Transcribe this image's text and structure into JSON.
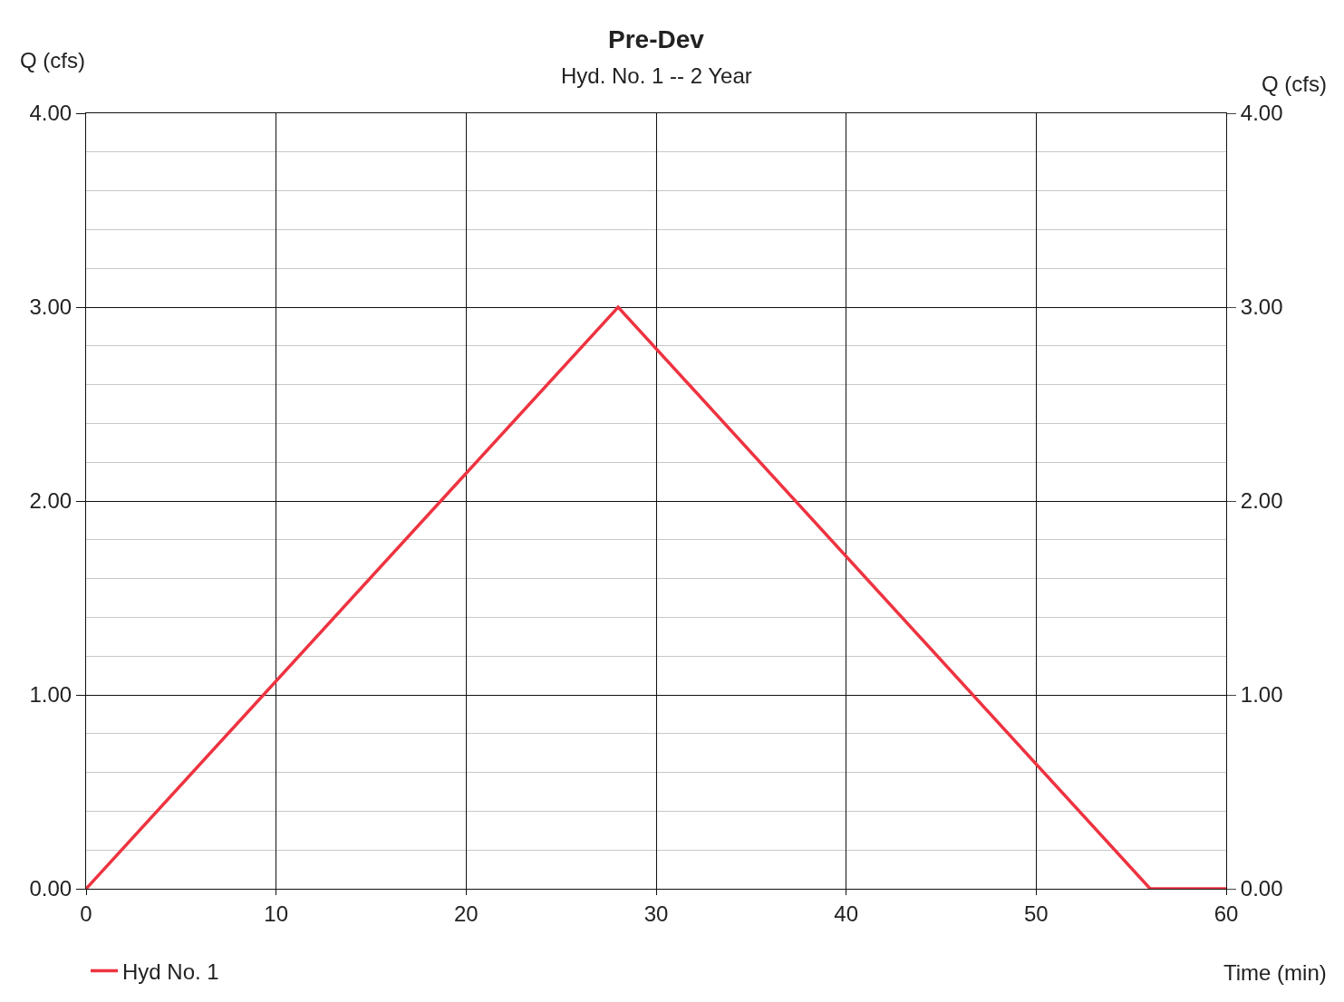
{
  "chart_data": {
    "type": "line",
    "title": "Pre-Dev",
    "subtitle": "Hyd. No. 1 -- 2 Year",
    "xlabel": "Time (min)",
    "ylabel": "Q (cfs)",
    "y2label": "Q (cfs)",
    "x": [
      0,
      28,
      56,
      60
    ],
    "series": [
      {
        "name": "Hyd No. 1",
        "color": "#ee3340",
        "values": [
          0,
          3.0,
          0,
          0
        ]
      }
    ],
    "xlim": [
      0,
      60
    ],
    "xticks": [
      0,
      10,
      20,
      30,
      40,
      50,
      60
    ],
    "ylim": [
      0,
      4
    ],
    "yticks": [
      {
        "value": 0,
        "label": "0.00"
      },
      {
        "value": 0.2,
        "label": null
      },
      {
        "value": 0.4,
        "label": null
      },
      {
        "value": 0.6,
        "label": null
      },
      {
        "value": 0.8,
        "label": null
      },
      {
        "value": 1,
        "label": "1.00"
      },
      {
        "value": 1.2,
        "label": null
      },
      {
        "value": 1.4,
        "label": null
      },
      {
        "value": 1.6,
        "label": null
      },
      {
        "value": 1.8,
        "label": null
      },
      {
        "value": 2,
        "label": "2.00"
      },
      {
        "value": 2.2,
        "label": null
      },
      {
        "value": 2.4,
        "label": null
      },
      {
        "value": 2.6,
        "label": null
      },
      {
        "value": 2.8,
        "label": null
      },
      {
        "value": 3,
        "label": "3.00"
      },
      {
        "value": 3.2,
        "label": null
      },
      {
        "value": 3.4,
        "label": null
      },
      {
        "value": 3.6,
        "label": null
      },
      {
        "value": 3.8,
        "label": null
      },
      {
        "value": 4,
        "label": "4.00"
      }
    ],
    "y2lim": [
      0,
      4
    ],
    "y2ticks": [
      {
        "value": 0,
        "label": "0.00"
      },
      {
        "value": 1,
        "label": "1.00"
      },
      {
        "value": 2,
        "label": "2.00"
      },
      {
        "value": 3,
        "label": "3.00"
      },
      {
        "value": 4,
        "label": "4.00"
      }
    ],
    "grid": true,
    "legend": "bottom left",
    "marker": "none",
    "line_style": "solid"
  }
}
